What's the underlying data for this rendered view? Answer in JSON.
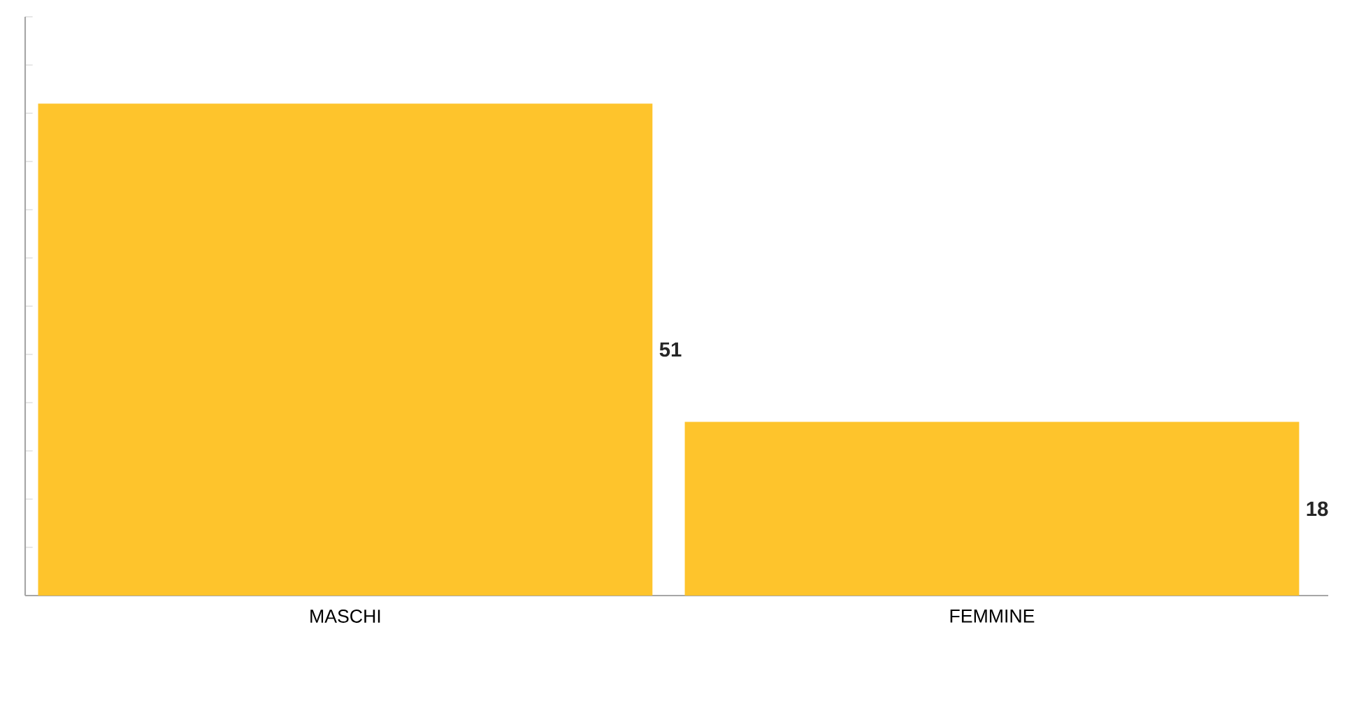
{
  "chart_data": {
    "type": "bar",
    "categories": [
      "MASCHI",
      "FEMMINE"
    ],
    "values": [
      51,
      18
    ],
    "color": "#fec42c",
    "ylim": [
      0,
      60
    ],
    "yticks": [
      {
        "value": 0,
        "label": null
      },
      {
        "value": 5,
        "label": null
      },
      {
        "value": 10,
        "label": null
      },
      {
        "value": 15,
        "label": null
      },
      {
        "value": 20,
        "label": null
      },
      {
        "value": 25,
        "label": null
      },
      {
        "value": 30,
        "label": null
      },
      {
        "value": 35,
        "label": null
      },
      {
        "value": 40,
        "label": null
      },
      {
        "value": 45,
        "label": null
      },
      {
        "value": 50,
        "label": null
      },
      {
        "value": 55,
        "label": null
      },
      {
        "value": 60,
        "label": null
      }
    ],
    "tick_labels": "x",
    "data_labels": true
  }
}
